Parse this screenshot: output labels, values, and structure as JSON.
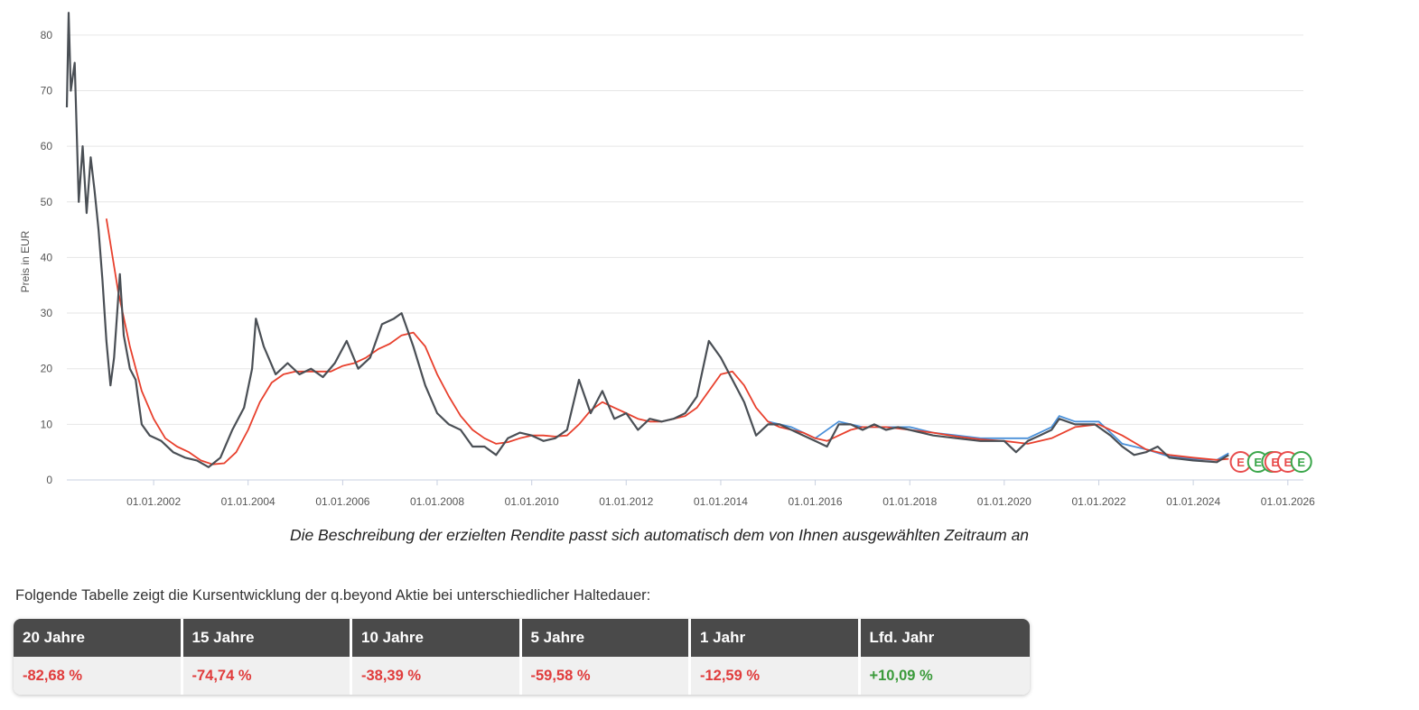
{
  "chart_data": {
    "type": "line",
    "ylabel": "Preis in EUR",
    "ylim": [
      0,
      85
    ],
    "yticks": [
      "0",
      "10",
      "20",
      "30",
      "40",
      "50",
      "60",
      "70",
      "80"
    ],
    "xlim": [
      "2000-03-01",
      "2026-05-01"
    ],
    "xticks": [
      "01.01.2002",
      "01.01.2004",
      "01.01.2006",
      "01.01.2008",
      "01.01.2010",
      "01.01.2012",
      "01.01.2014",
      "01.01.2016",
      "01.01.2018",
      "01.01.2020",
      "01.01.2022",
      "01.01.2024",
      "01.01.2026"
    ],
    "grid": true,
    "series": [
      {
        "color": "#4a4f55",
        "points": [
          [
            "2000-03-01",
            67
          ],
          [
            "2000-03-15",
            84
          ],
          [
            "2000-04-01",
            70
          ],
          [
            "2000-05-01",
            75
          ],
          [
            "2000-06-01",
            50
          ],
          [
            "2000-07-01",
            60
          ],
          [
            "2000-08-01",
            48
          ],
          [
            "2000-09-01",
            58
          ],
          [
            "2000-10-01",
            52
          ],
          [
            "2000-11-01",
            45
          ],
          [
            "2000-12-01",
            36
          ],
          [
            "2001-01-01",
            25
          ],
          [
            "2001-02-01",
            17
          ],
          [
            "2001-03-01",
            22
          ],
          [
            "2001-04-15",
            37
          ],
          [
            "2001-05-15",
            26
          ],
          [
            "2001-07-01",
            20
          ],
          [
            "2001-08-15",
            18
          ],
          [
            "2001-10-01",
            10
          ],
          [
            "2001-12-01",
            8
          ],
          [
            "2002-03-01",
            7
          ],
          [
            "2002-06-01",
            5
          ],
          [
            "2002-09-01",
            4
          ],
          [
            "2002-12-01",
            3.5
          ],
          [
            "2003-03-01",
            2.3
          ],
          [
            "2003-06-01",
            4
          ],
          [
            "2003-09-01",
            9
          ],
          [
            "2003-12-01",
            13
          ],
          [
            "2004-02-01",
            20
          ],
          [
            "2004-03-01",
            29
          ],
          [
            "2004-05-01",
            24
          ],
          [
            "2004-08-01",
            19
          ],
          [
            "2004-11-01",
            21
          ],
          [
            "2005-02-01",
            19
          ],
          [
            "2005-05-01",
            20
          ],
          [
            "2005-08-01",
            18.5
          ],
          [
            "2005-11-01",
            21
          ],
          [
            "2006-02-01",
            25
          ],
          [
            "2006-05-01",
            20
          ],
          [
            "2006-08-01",
            22
          ],
          [
            "2006-11-01",
            28
          ],
          [
            "2007-02-01",
            29
          ],
          [
            "2007-04-01",
            30
          ],
          [
            "2007-07-01",
            24
          ],
          [
            "2007-10-01",
            17
          ],
          [
            "2008-01-01",
            12
          ],
          [
            "2008-04-01",
            10
          ],
          [
            "2008-07-01",
            9
          ],
          [
            "2008-10-01",
            6
          ],
          [
            "2009-01-01",
            6
          ],
          [
            "2009-04-01",
            4.5
          ],
          [
            "2009-07-01",
            7.5
          ],
          [
            "2009-10-01",
            8.5
          ],
          [
            "2010-01-01",
            8
          ],
          [
            "2010-04-01",
            7
          ],
          [
            "2010-07-01",
            7.5
          ],
          [
            "2010-10-01",
            9
          ],
          [
            "2011-01-01",
            18
          ],
          [
            "2011-04-01",
            12
          ],
          [
            "2011-07-01",
            16
          ],
          [
            "2011-10-01",
            11
          ],
          [
            "2012-01-01",
            12
          ],
          [
            "2012-04-01",
            9
          ],
          [
            "2012-07-01",
            11
          ],
          [
            "2012-10-01",
            10.5
          ],
          [
            "2013-01-01",
            11
          ],
          [
            "2013-04-01",
            12
          ],
          [
            "2013-07-01",
            15
          ],
          [
            "2013-10-01",
            25
          ],
          [
            "2014-01-01",
            22
          ],
          [
            "2014-04-01",
            18
          ],
          [
            "2014-07-01",
            14
          ],
          [
            "2014-10-01",
            8
          ],
          [
            "2015-01-01",
            10
          ],
          [
            "2015-04-01",
            10
          ],
          [
            "2015-07-01",
            9
          ],
          [
            "2015-10-01",
            8
          ],
          [
            "2016-01-01",
            7
          ],
          [
            "2016-04-01",
            6
          ],
          [
            "2016-07-01",
            10
          ],
          [
            "2016-10-01",
            10
          ],
          [
            "2017-01-01",
            9
          ],
          [
            "2017-04-01",
            10
          ],
          [
            "2017-07-01",
            9
          ],
          [
            "2017-10-01",
            9.5
          ],
          [
            "2018-01-01",
            9
          ],
          [
            "2018-07-01",
            8
          ],
          [
            "2019-01-01",
            7.5
          ],
          [
            "2019-07-01",
            7
          ],
          [
            "2020-01-01",
            7
          ],
          [
            "2020-04-01",
            5
          ],
          [
            "2020-07-01",
            7
          ],
          [
            "2020-10-01",
            8
          ],
          [
            "2021-01-01",
            9
          ],
          [
            "2021-03-01",
            11
          ],
          [
            "2021-07-01",
            10
          ],
          [
            "2021-12-01",
            10
          ],
          [
            "2022-04-01",
            8
          ],
          [
            "2022-07-01",
            6
          ],
          [
            "2022-10-01",
            4.5
          ],
          [
            "2023-01-01",
            5
          ],
          [
            "2023-04-01",
            6
          ],
          [
            "2023-07-01",
            4
          ],
          [
            "2024-01-01",
            3.5
          ],
          [
            "2024-07-01",
            3.2
          ],
          [
            "2024-10-01",
            4.5
          ]
        ]
      },
      {
        "color": "#e8402d",
        "points": [
          [
            "2001-01-01",
            47
          ],
          [
            "2001-04-01",
            34
          ],
          [
            "2001-07-01",
            24
          ],
          [
            "2001-10-01",
            16
          ],
          [
            "2002-01-01",
            11
          ],
          [
            "2002-04-01",
            7.5
          ],
          [
            "2002-07-01",
            6
          ],
          [
            "2002-10-01",
            5
          ],
          [
            "2003-01-01",
            3.5
          ],
          [
            "2003-04-01",
            2.8
          ],
          [
            "2003-07-01",
            3
          ],
          [
            "2003-10-01",
            5
          ],
          [
            "2004-01-01",
            9
          ],
          [
            "2004-04-01",
            14
          ],
          [
            "2004-07-01",
            17.5
          ],
          [
            "2004-10-01",
            19
          ],
          [
            "2005-01-01",
            19.5
          ],
          [
            "2005-04-01",
            19.5
          ],
          [
            "2005-07-01",
            19.5
          ],
          [
            "2005-10-01",
            19.5
          ],
          [
            "2006-01-01",
            20.5
          ],
          [
            "2006-04-01",
            21
          ],
          [
            "2006-07-01",
            22
          ],
          [
            "2006-10-01",
            23.5
          ],
          [
            "2007-01-01",
            24.5
          ],
          [
            "2007-04-01",
            26
          ],
          [
            "2007-07-01",
            26.5
          ],
          [
            "2007-10-01",
            24
          ],
          [
            "2008-01-01",
            19
          ],
          [
            "2008-04-01",
            15
          ],
          [
            "2008-07-01",
            11.5
          ],
          [
            "2008-10-01",
            9
          ],
          [
            "2009-01-01",
            7.5
          ],
          [
            "2009-04-01",
            6.5
          ],
          [
            "2009-07-01",
            6.8
          ],
          [
            "2009-10-01",
            7.5
          ],
          [
            "2010-01-01",
            8
          ],
          [
            "2010-04-01",
            8
          ],
          [
            "2010-07-01",
            7.8
          ],
          [
            "2010-10-01",
            8
          ],
          [
            "2011-01-01",
            10
          ],
          [
            "2011-04-01",
            12.5
          ],
          [
            "2011-07-01",
            14
          ],
          [
            "2011-10-01",
            13
          ],
          [
            "2012-01-01",
            12
          ],
          [
            "2012-04-01",
            11
          ],
          [
            "2012-07-01",
            10.5
          ],
          [
            "2012-10-01",
            10.5
          ],
          [
            "2013-01-01",
            11
          ],
          [
            "2013-04-01",
            11.5
          ],
          [
            "2013-07-01",
            13
          ],
          [
            "2013-10-01",
            16
          ],
          [
            "2014-01-01",
            19
          ],
          [
            "2014-04-01",
            19.5
          ],
          [
            "2014-07-01",
            17
          ],
          [
            "2014-10-01",
            13
          ],
          [
            "2015-01-01",
            10.5
          ],
          [
            "2015-04-01",
            9.5
          ],
          [
            "2015-07-01",
            9
          ],
          [
            "2015-10-01",
            8.5
          ],
          [
            "2016-01-01",
            7.5
          ],
          [
            "2016-04-01",
            7
          ],
          [
            "2016-07-01",
            8
          ],
          [
            "2016-10-01",
            9
          ],
          [
            "2017-01-01",
            9.5
          ],
          [
            "2017-07-01",
            9.5
          ],
          [
            "2018-01-01",
            9
          ],
          [
            "2018-07-01",
            8.5
          ],
          [
            "2019-01-01",
            7.8
          ],
          [
            "2019-07-01",
            7.3
          ],
          [
            "2020-01-01",
            7
          ],
          [
            "2020-07-01",
            6.5
          ],
          [
            "2021-01-01",
            7.5
          ],
          [
            "2021-07-01",
            9.5
          ],
          [
            "2022-01-01",
            10
          ],
          [
            "2022-07-01",
            8
          ],
          [
            "2023-01-01",
            5.5
          ],
          [
            "2023-07-01",
            4.5
          ],
          [
            "2024-01-01",
            4
          ],
          [
            "2024-07-01",
            3.6
          ],
          [
            "2024-10-01",
            3.8
          ]
        ]
      },
      {
        "color": "#4a90d9",
        "points": [
          [
            "2015-01-01",
            10.5
          ],
          [
            "2015-07-01",
            9.5
          ],
          [
            "2016-01-01",
            7.5
          ],
          [
            "2016-07-01",
            10.5
          ],
          [
            "2017-01-01",
            9.5
          ],
          [
            "2017-07-01",
            9.5
          ],
          [
            "2018-01-01",
            9.5
          ],
          [
            "2018-07-01",
            8.5
          ],
          [
            "2019-01-01",
            8
          ],
          [
            "2019-07-01",
            7.5
          ],
          [
            "2020-01-01",
            7.5
          ],
          [
            "2020-07-01",
            7.5
          ],
          [
            "2021-01-01",
            9.5
          ],
          [
            "2021-03-01",
            11.5
          ],
          [
            "2021-07-01",
            10.5
          ],
          [
            "2022-01-01",
            10.5
          ],
          [
            "2022-07-01",
            6.5
          ],
          [
            "2023-01-01",
            5.5
          ],
          [
            "2023-07-01",
            4.2
          ],
          [
            "2024-01-01",
            3.8
          ],
          [
            "2024-07-01",
            3.6
          ],
          [
            "2024-10-01",
            4.8
          ]
        ]
      }
    ],
    "events": [
      {
        "date": "2025-01-01",
        "label": "E",
        "color": "#e84c4c"
      },
      {
        "date": "2025-05-15",
        "label": "E",
        "color": "#3aa64a"
      },
      {
        "date": "2025-09-01",
        "label": "E",
        "color": "#3aa64a"
      },
      {
        "date": "2025-09-25",
        "label": "E",
        "color": "#e84c4c"
      },
      {
        "date": "2026-01-01",
        "label": "E",
        "color": "#e84c4c"
      },
      {
        "date": "2026-04-15",
        "label": "E",
        "color": "#3aa64a"
      }
    ]
  },
  "caption": "Die Beschreibung der erzielten Rendite passt sich automatisch dem von Ihnen ausgewählten Zeitraum an",
  "intro": "Folgende Tabelle zeigt die Kursentwicklung der q.beyond Aktie bei unterschiedlicher Haltedauer:",
  "table": {
    "headers": [
      "20 Jahre",
      "15 Jahre",
      "10 Jahre",
      "5 Jahre",
      "1 Jahr",
      "Lfd. Jahr"
    ],
    "values": [
      "-82,68 %",
      "-74,74 %",
      "-38,39 %",
      "-59,58 %",
      "-12,59 %",
      "+10,09 %"
    ]
  }
}
